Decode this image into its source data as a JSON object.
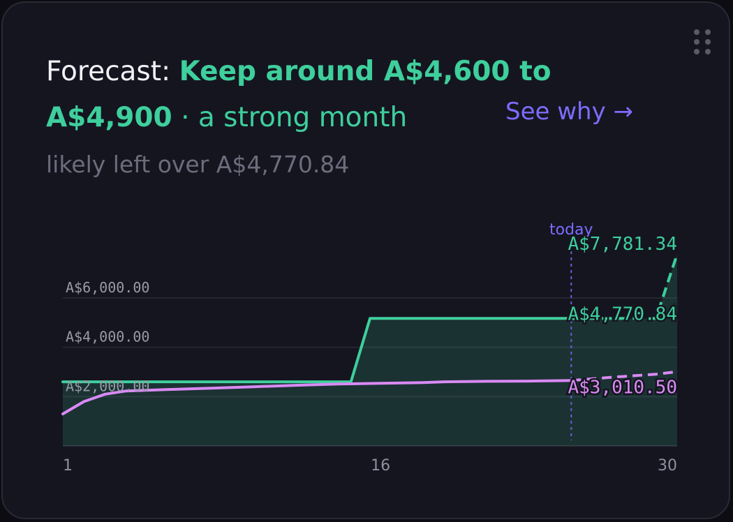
{
  "header": {
    "prefix": "Forecast: ",
    "range": "Keep around A$4,600 to A$4,900",
    "tail": " · a strong month",
    "see_why": "See why →",
    "subtitle": "likely left over A$4,770.84"
  },
  "colors": {
    "accent_green": "#3ecf9c",
    "accent_purple": "#7e6cff",
    "spend_pink": "#d98af5",
    "card_bg": "#151520"
  },
  "icons": {
    "drag_handle": "drag-handle-icon"
  },
  "chart_data": {
    "type": "line",
    "xlabel": "",
    "ylabel": "",
    "xlim": [
      1,
      30
    ],
    "ylim": [
      0,
      7781.34
    ],
    "x_ticks": [
      {
        "value": 1,
        "label": "1"
      },
      {
        "value": 16,
        "label": "16"
      },
      {
        "value": 30,
        "label": "30"
      }
    ],
    "y_ticks": [
      {
        "value": 2000,
        "label": "A$2,000.00"
      },
      {
        "value": 4000,
        "label": "A$4,000.00"
      },
      {
        "value": 6000,
        "label": "A$6,000.00"
      }
    ],
    "today": {
      "x": 25,
      "label": "today"
    },
    "series": [
      {
        "role": "balance",
        "color": "#3ecf9c",
        "area": true,
        "actual": [
          [
            1,
            2600
          ],
          [
            14.6,
            2600
          ],
          [
            15.5,
            5170
          ],
          [
            25,
            5170
          ]
        ],
        "forecast": [
          [
            25,
            5170
          ],
          [
            29,
            5170
          ],
          [
            30,
            7781.34
          ]
        ],
        "end_label": "A$4,770.84",
        "high_label": "A$7,781.34"
      },
      {
        "role": "spend",
        "color": "#d98af5",
        "area": false,
        "actual": [
          [
            1,
            1300
          ],
          [
            2,
            1800
          ],
          [
            3,
            2100
          ],
          [
            4,
            2230
          ],
          [
            6,
            2290
          ],
          [
            8,
            2340
          ],
          [
            10,
            2400
          ],
          [
            12,
            2460
          ],
          [
            14,
            2510
          ],
          [
            16,
            2540
          ],
          [
            18,
            2570
          ],
          [
            19,
            2600
          ],
          [
            21,
            2620
          ],
          [
            23,
            2630
          ],
          [
            25,
            2650
          ]
        ],
        "forecast": [
          [
            25,
            2650
          ],
          [
            27,
            2790
          ],
          [
            29,
            2910
          ],
          [
            30,
            3010.5
          ]
        ],
        "end_label": "A$3,010.50"
      }
    ]
  }
}
